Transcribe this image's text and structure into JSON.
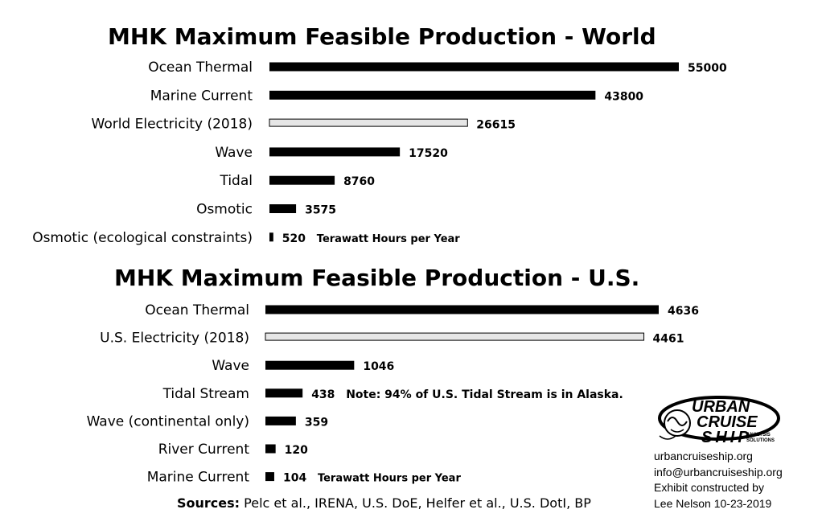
{
  "chart_data": [
    {
      "type": "bar",
      "orientation": "horizontal",
      "title": "MHK Maximum Feasible Production - World",
      "categories": [
        "Ocean Thermal",
        "Marine Current",
        "World Electricity (2018)",
        "Wave",
        "Tidal",
        "Osmotic",
        "Osmotic (ecological constraints)"
      ],
      "values": [
        55000,
        43800,
        26615,
        17520,
        8760,
        3575,
        520
      ],
      "fills": [
        "#000000",
        "#000000",
        "#e6e6e6",
        "#000000",
        "#000000",
        "#000000",
        "#000000"
      ],
      "unit_label": "Terawatt Hours per Year",
      "unit_label_row": 6,
      "xlim": [
        0,
        55000
      ]
    },
    {
      "type": "bar",
      "orientation": "horizontal",
      "title": "MHK Maximum Feasible Production - U.S.",
      "categories": [
        "Ocean Thermal",
        "U.S. Electricity (2018)",
        "Wave",
        "Tidal Stream",
        "Wave (continental only)",
        "River Current",
        "Marine Current"
      ],
      "values": [
        4636,
        4461,
        1046,
        438,
        359,
        120,
        104
      ],
      "fills": [
        "#000000",
        "#e6e6e6",
        "#000000",
        "#000000",
        "#000000",
        "#000000",
        "#000000"
      ],
      "note": "Note: 94% of U.S. Tidal Stream is in Alaska.",
      "note_row": 3,
      "unit_label": "Terawatt Hours per Year",
      "unit_label_row": 6,
      "xlim": [
        0,
        4636
      ]
    }
  ],
  "sources": {
    "label": "Sources:",
    "text": "Pelc et al., IRENA, U.S. DoE, Helfer et al., U.S. DotI, BP"
  },
  "logo": {
    "line1": "URBAN",
    "line2": "CRUISE",
    "line3": "SHIP",
    "tag1": "ANALYSIS",
    "tag2": "SOLUTIONS"
  },
  "footer": {
    "website": "urbancruiseship.org",
    "email": "info@urbancruiseship.org",
    "line3": "Exhibit constructed by",
    "line4": "Lee Nelson 10-23-2019"
  }
}
